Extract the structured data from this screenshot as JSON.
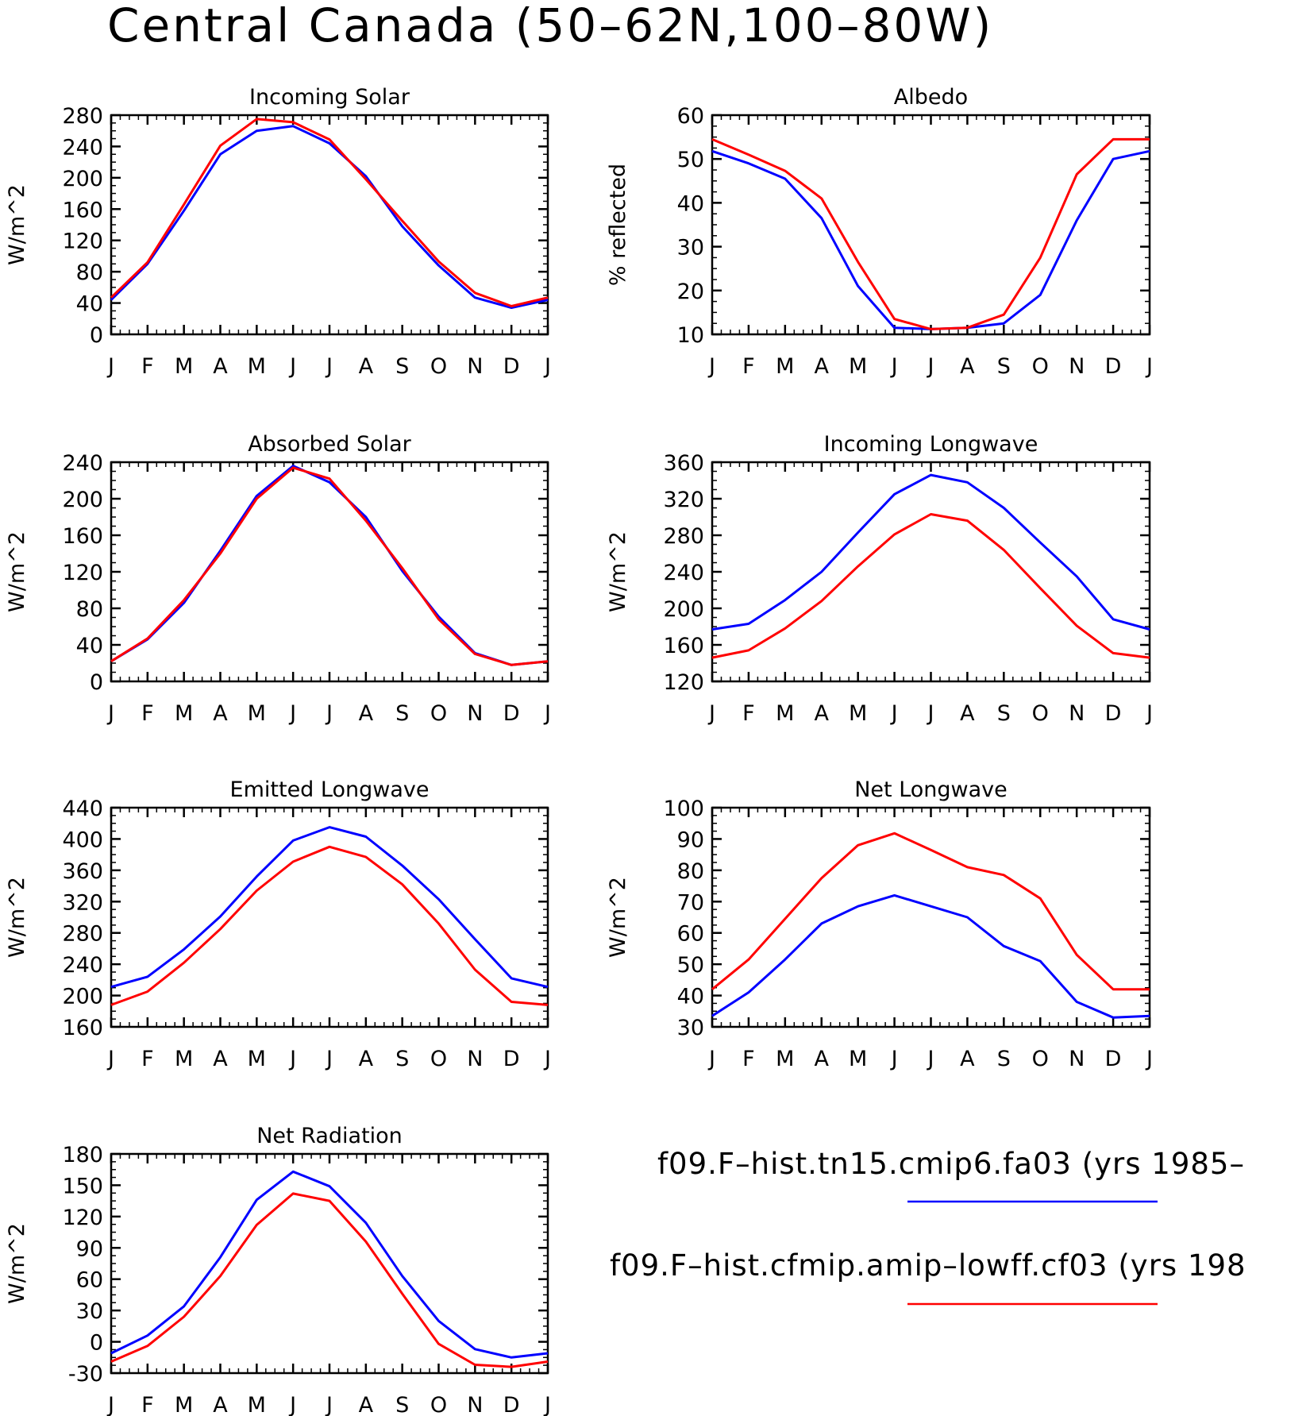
{
  "figure": {
    "title": "Central Canada (50–62N,100–80W)"
  },
  "legend": {
    "entries": [
      {
        "label": "f09.F–hist.tn15.cmip6.fa03 (yrs 1985–",
        "color": "#0000ff"
      },
      {
        "label": "f09.F–hist.cfmip.amip–lowff.cf03 (yrs 198",
        "color": "#ff0000"
      }
    ]
  },
  "colors": {
    "blue": "#0000ff",
    "red": "#ff0000"
  },
  "chart_data": [
    {
      "type": "line",
      "title": "Incoming Solar",
      "ylabel": "W/m^2",
      "x": [
        "J",
        "F",
        "M",
        "A",
        "M",
        "J",
        "J",
        "A",
        "S",
        "O",
        "N",
        "D",
        "J"
      ],
      "ylim": [
        0,
        280
      ],
      "yticks": [
        0,
        40,
        80,
        120,
        160,
        200,
        240,
        280
      ],
      "series": [
        {
          "color": "#0000ff",
          "values": [
            44,
            90,
            158,
            230,
            260,
            266,
            244,
            202,
            138,
            88,
            47,
            34,
            44
          ]
        },
        {
          "color": "#ff0000",
          "values": [
            47,
            92,
            166,
            241,
            275,
            271,
            249,
            198,
            145,
            93,
            53,
            36,
            47
          ]
        }
      ]
    },
    {
      "type": "line",
      "title": "Albedo",
      "ylabel": "% reflected",
      "x": [
        "J",
        "F",
        "M",
        "A",
        "M",
        "J",
        "J",
        "A",
        "S",
        "O",
        "N",
        "D",
        "J"
      ],
      "ylim": [
        10,
        60
      ],
      "yticks": [
        10,
        20,
        30,
        40,
        50,
        60
      ],
      "series": [
        {
          "color": "#0000ff",
          "values": [
            51.8,
            49,
            45.5,
            36.5,
            21,
            11.5,
            11.2,
            11.5,
            12.5,
            19,
            36,
            50,
            51.8
          ]
        },
        {
          "color": "#ff0000",
          "values": [
            54.5,
            51,
            47.3,
            41,
            26.5,
            13.5,
            11.2,
            11.5,
            14.5,
            27.5,
            46.5,
            54.5,
            54.5
          ]
        }
      ]
    },
    {
      "type": "line",
      "title": "Absorbed Solar",
      "ylabel": "W/m^2",
      "x": [
        "J",
        "F",
        "M",
        "A",
        "M",
        "J",
        "J",
        "A",
        "S",
        "O",
        "N",
        "D",
        "J"
      ],
      "ylim": [
        0,
        240
      ],
      "yticks": [
        0,
        40,
        80,
        120,
        160,
        200,
        240
      ],
      "series": [
        {
          "color": "#0000ff",
          "values": [
            22,
            46,
            86,
            143,
            203,
            236,
            218,
            180,
            121,
            71,
            31,
            18,
            22
          ]
        },
        {
          "color": "#ff0000",
          "values": [
            22,
            47,
            89,
            140,
            200,
            234,
            222,
            176,
            124,
            68,
            30,
            18,
            22
          ]
        }
      ]
    },
    {
      "type": "line",
      "title": "Incoming Longwave",
      "ylabel": "W/m^2",
      "x": [
        "J",
        "F",
        "M",
        "A",
        "M",
        "J",
        "J",
        "A",
        "S",
        "O",
        "N",
        "D",
        "J"
      ],
      "ylim": [
        120,
        360
      ],
      "yticks": [
        120,
        160,
        200,
        240,
        280,
        320,
        360
      ],
      "series": [
        {
          "color": "#0000ff",
          "values": [
            177,
            183,
            209,
            240,
            283,
            325,
            346,
            338,
            310,
            272,
            235,
            188,
            177
          ]
        },
        {
          "color": "#ff0000",
          "values": [
            146,
            154,
            178,
            208,
            246,
            281,
            303,
            296,
            264,
            222,
            181,
            151,
            146
          ]
        }
      ]
    },
    {
      "type": "line",
      "title": "Emitted Longwave",
      "ylabel": "W/m^2",
      "x": [
        "J",
        "F",
        "M",
        "A",
        "M",
        "J",
        "J",
        "A",
        "S",
        "O",
        "N",
        "D",
        "J"
      ],
      "ylim": [
        160,
        440
      ],
      "yticks": [
        160,
        200,
        240,
        280,
        320,
        360,
        400,
        440
      ],
      "series": [
        {
          "color": "#0000ff",
          "values": [
            211,
            224,
            259,
            301,
            352,
            398,
            415,
            403,
            366,
            323,
            272,
            222,
            211
          ]
        },
        {
          "color": "#ff0000",
          "values": [
            188,
            205,
            242,
            285,
            334,
            371,
            390,
            377,
            342,
            292,
            233,
            192,
            188
          ]
        }
      ]
    },
    {
      "type": "line",
      "title": "Net Longwave",
      "ylabel": "W/m^2",
      "x": [
        "J",
        "F",
        "M",
        "A",
        "M",
        "J",
        "J",
        "A",
        "S",
        "O",
        "N",
        "D",
        "J"
      ],
      "ylim": [
        30,
        100
      ],
      "yticks": [
        30,
        40,
        50,
        60,
        70,
        80,
        90,
        100
      ],
      "series": [
        {
          "color": "#0000ff",
          "values": [
            33.5,
            41,
            51.5,
            63,
            68.5,
            72,
            68.5,
            65,
            55.8,
            51,
            38,
            33,
            33.5
          ]
        },
        {
          "color": "#ff0000",
          "values": [
            42,
            51.5,
            64.5,
            77.5,
            88,
            91.8,
            86.5,
            81,
            78.5,
            71,
            53,
            42,
            42
          ]
        }
      ]
    },
    {
      "type": "line",
      "title": "Net Radiation",
      "ylabel": "W/m^2",
      "x": [
        "J",
        "F",
        "M",
        "A",
        "M",
        "J",
        "J",
        "A",
        "S",
        "O",
        "N",
        "D",
        "J"
      ],
      "ylim": [
        -30,
        180
      ],
      "yticks": [
        -30,
        0,
        30,
        60,
        90,
        120,
        150,
        180
      ],
      "series": [
        {
          "color": "#0000ff",
          "values": [
            -11,
            6,
            34,
            81,
            136,
            163,
            149,
            114,
            63,
            20,
            -7,
            -15,
            -11
          ]
        },
        {
          "color": "#ff0000",
          "values": [
            -19,
            -4,
            24,
            63,
            112,
            142,
            135,
            96,
            46,
            -2,
            -22,
            -24,
            -19
          ]
        }
      ]
    }
  ]
}
